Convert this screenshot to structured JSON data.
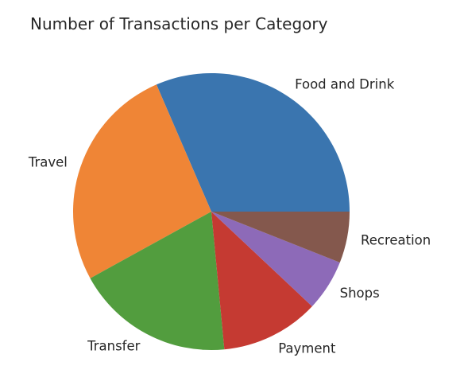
{
  "chart_data": {
    "type": "pie",
    "title": "Number of Transactions per Category",
    "categories": [
      "Food and Drink",
      "Travel",
      "Transfer",
      "Payment",
      "Shops",
      "Recreation"
    ],
    "values": [
      31.5,
      26.5,
      18.5,
      11.5,
      6,
      6
    ],
    "colors": [
      "#3a75af",
      "#ef8536",
      "#529d3e",
      "#c53a32",
      "#8d6ab8",
      "#84584d"
    ],
    "start_angle_deg": 0,
    "direction": "counterclockwise",
    "legend": "none"
  }
}
